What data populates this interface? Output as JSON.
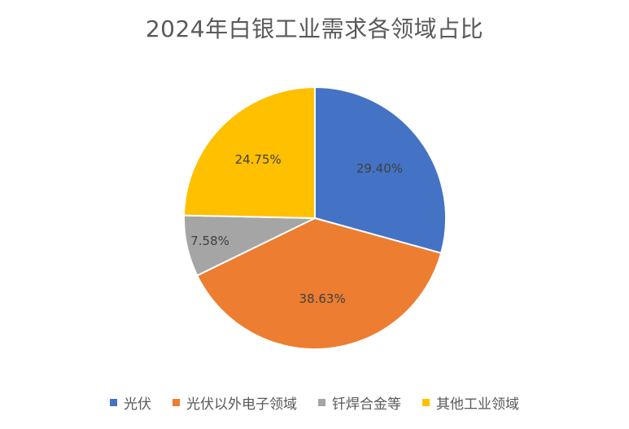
{
  "chart_data": {
    "type": "pie",
    "title": "2024年白银工业需求各领域占比",
    "categories": [
      "光伏",
      "光伏以外电子领域",
      "钎焊合金等",
      "其他工业领域"
    ],
    "values": [
      29.4,
      38.63,
      7.58,
      24.75
    ],
    "labels": [
      "29.40%",
      "38.63%",
      "7.58%",
      "24.75%"
    ],
    "colors": [
      "#4472C4",
      "#ED7D31",
      "#A5A5A5",
      "#FFC000"
    ],
    "legend_position": "bottom"
  }
}
